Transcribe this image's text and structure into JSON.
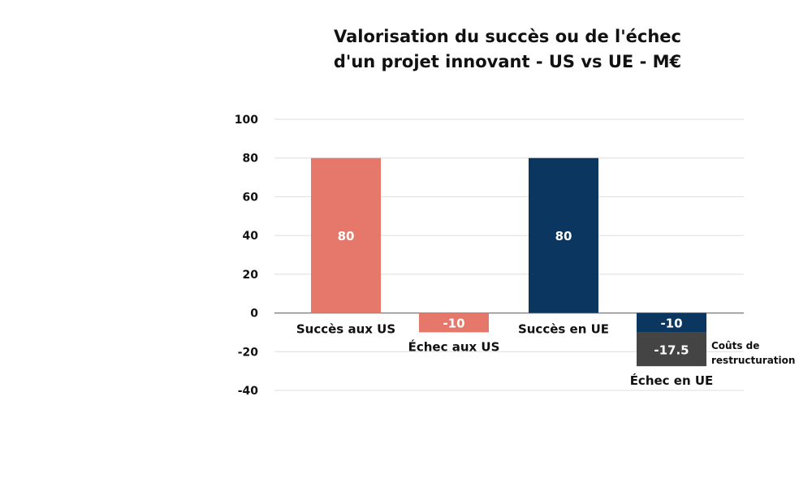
{
  "chart_data": {
    "type": "bar",
    "title_line1": "Valorisation du succès ou de l'échec",
    "title_line2": "d'un projet innovant - US vs UE - M€",
    "categories": [
      "Succès aux US",
      "Échec aux US",
      "Succès en UE",
      "Échec en UE"
    ],
    "series": [
      {
        "values": [
          80,
          -10,
          80,
          -10
        ],
        "colors": [
          "#e5786a",
          "#e5786a",
          "#0b3660",
          "#0b3660"
        ]
      },
      {
        "name": "Coûts de restructuration",
        "values": [
          0,
          0,
          0,
          -17.5
        ],
        "color": "#444444"
      }
    ],
    "data_labels": [
      "80",
      "-10",
      "80",
      "-10",
      "-17.5"
    ],
    "annotation": [
      "Coûts de",
      "restructuration"
    ],
    "ylim": [
      -40,
      100
    ],
    "yticks": [
      100,
      80,
      60,
      40,
      20,
      0,
      -20,
      -40
    ],
    "grid": true,
    "stacked": true
  }
}
